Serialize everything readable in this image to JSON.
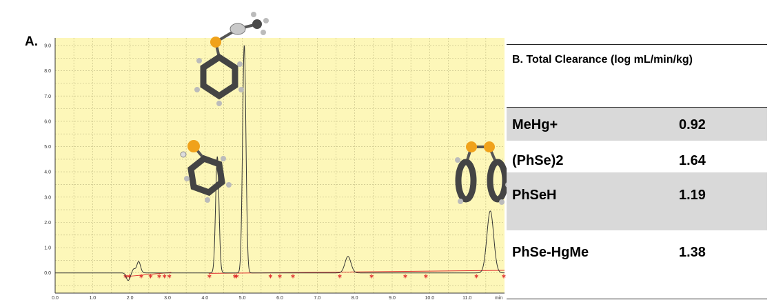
{
  "panel_a_label": "A.",
  "chart_data": {
    "type": "line",
    "title": "",
    "xlabel": "",
    "ylabel": "",
    "x_unit_label": "min",
    "xlim": [
      0.0,
      12.0
    ],
    "ylim": [
      -0.8,
      9.3
    ],
    "x_ticks": [
      "0.0",
      "1.0",
      "2.0",
      "3.0",
      "4.0",
      "5.0",
      "6.0",
      "7.0",
      "8.0",
      "9.0",
      "10.0",
      "11.0"
    ],
    "y_ticks": [
      "0.0",
      "1.0",
      "2.0",
      "3.0",
      "4.0",
      "5.0",
      "6.0",
      "7.0",
      "8.0",
      "9.0"
    ],
    "grid": true,
    "background_color": "#fdf7b9",
    "trace_color": "#333333",
    "baseline_color": "#e03030",
    "peaks": [
      {
        "rt": 1.95,
        "height": -0.3,
        "width": 0.05
      },
      {
        "rt": 2.1,
        "height": 0.15,
        "width": 0.04
      },
      {
        "rt": 2.23,
        "height": 0.45,
        "width": 0.05
      },
      {
        "rt": 4.33,
        "height": 4.6,
        "width": 0.045
      },
      {
        "rt": 5.05,
        "height": 9.0,
        "width": 0.045
      },
      {
        "rt": 7.82,
        "height": 0.65,
        "width": 0.08
      },
      {
        "rt": 11.62,
        "height": 2.45,
        "width": 0.09
      }
    ],
    "integration_marks": [
      1.88,
      1.98,
      2.3,
      2.55,
      2.78,
      2.92,
      3.05,
      4.12,
      4.8,
      4.85,
      5.75,
      6.0,
      6.35,
      7.6,
      8.45,
      9.35,
      9.9,
      11.25,
      11.98
    ]
  },
  "table": {
    "header": "B. Total Clearance (log mL/min/kg)",
    "rows": [
      {
        "name": "MeHg+",
        "value": "0.92"
      },
      {
        "name": "(PhSe)2",
        "value": "1.64"
      },
      {
        "name": "PhSeH",
        "value": "1.19"
      },
      {
        "name": "PhSe-HgMe",
        "value": "1.38"
      }
    ],
    "shade_color": "#d9d9d9"
  },
  "molecules": [
    "methylmercury-phenylselenide-molecule",
    "benzeneselenol-molecule",
    "diphenyl-diselenide-molecule"
  ]
}
